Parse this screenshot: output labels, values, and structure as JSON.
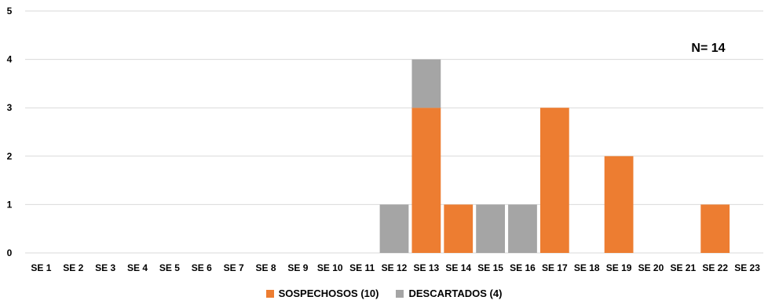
{
  "chart_data": {
    "type": "bar",
    "stacked": true,
    "categories": [
      "SE 1",
      "SE 2",
      "SE 3",
      "SE 4",
      "SE 5",
      "SE 6",
      "SE 7",
      "SE 8",
      "SE 9",
      "SE 10",
      "SE 11",
      "SE 12",
      "SE 13",
      "SE 14",
      "SE 15",
      "SE 16",
      "SE 17",
      "SE 18",
      "SE 19",
      "SE 20",
      "SE 21",
      "SE 22",
      "SE 23"
    ],
    "series": [
      {
        "name": "SOSPECHOSOS (10)",
        "color": "#ED7D31",
        "values": [
          0,
          0,
          0,
          0,
          0,
          0,
          0,
          0,
          0,
          0,
          0,
          0,
          3,
          1,
          0,
          0,
          3,
          0,
          2,
          0,
          0,
          1,
          0
        ]
      },
      {
        "name": "DESCARTADOS (4)",
        "color": "#A5A5A5",
        "values": [
          0,
          0,
          0,
          0,
          0,
          0,
          0,
          0,
          0,
          0,
          0,
          1,
          1,
          0,
          1,
          1,
          0,
          0,
          0,
          0,
          0,
          0,
          0
        ]
      }
    ],
    "ylim": [
      0,
      5
    ],
    "yticks": [
      "0",
      "1",
      "2",
      "3",
      "4",
      "5"
    ],
    "grid": true,
    "gridColor": "#D9D9D9",
    "legend_position": "bottom",
    "annotation": "N= 14"
  }
}
